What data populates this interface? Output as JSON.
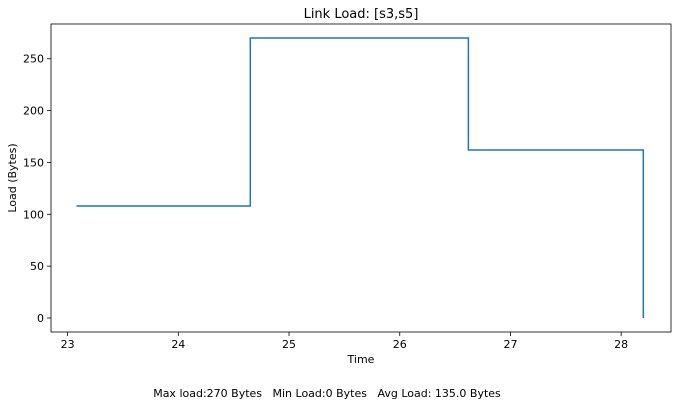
{
  "chart_data": {
    "type": "line",
    "step": "post",
    "title": "Link Load: [s3,s5]",
    "xlabel": "Time",
    "ylabel": "Load (Bytes)",
    "xlim": [
      22.85,
      28.45
    ],
    "ylim": [
      -13.5,
      283.5
    ],
    "xticks": [
      23,
      24,
      25,
      26,
      27,
      28
    ],
    "yticks": [
      0,
      50,
      100,
      150,
      200,
      250
    ],
    "grid": false,
    "line_color": "#1f77b4",
    "series": [
      {
        "x": [
          23.08,
          24.65,
          24.65,
          26.62,
          26.62,
          28.2,
          28.2
        ],
        "y": [
          108,
          108,
          270,
          270,
          162,
          162,
          0
        ]
      }
    ],
    "footer": "Max load:270 Bytes   Min Load:0 Bytes   Avg Load: 135.0 Bytes"
  }
}
